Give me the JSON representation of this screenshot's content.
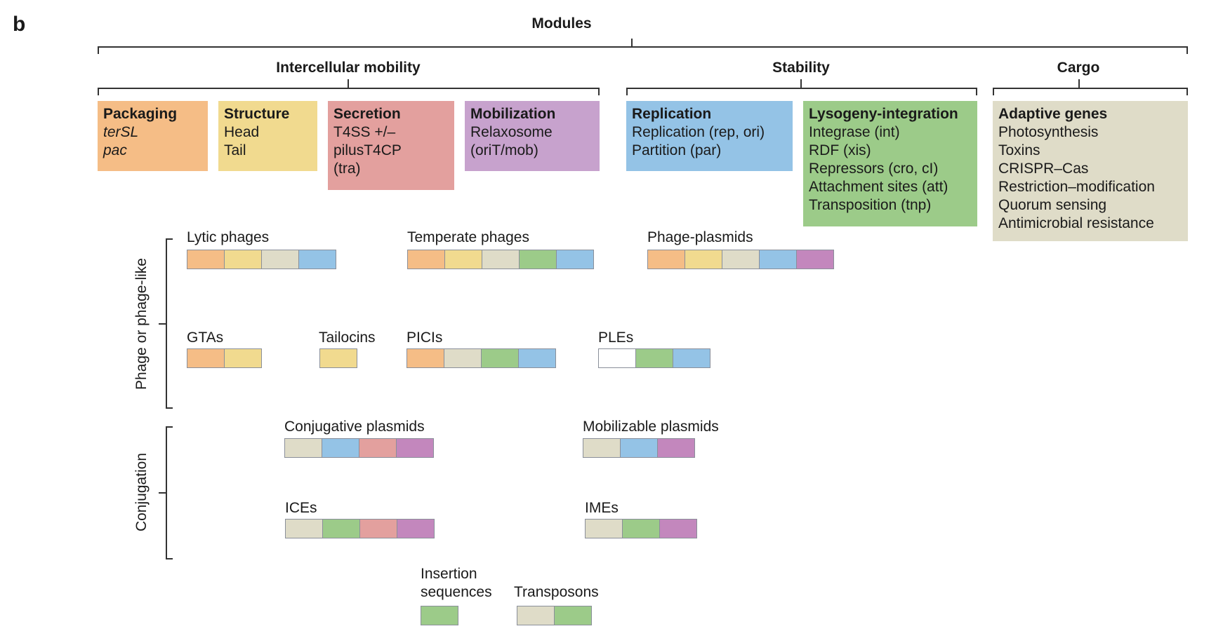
{
  "panel_label": "b",
  "colors": {
    "packaging": "#f5bd86",
    "structure": "#f1da8f",
    "secretion": "#e3a09e",
    "mobilization": "#c7a2cd",
    "replication": "#94c3e6",
    "lysogeny": "#9ccb89",
    "cargo": "#dfdcc8",
    "seg_mobilization": "#c387bd",
    "seg_empty": "#ffffff"
  },
  "headers": {
    "modules": "Modules",
    "intercellular": "Intercellular mobility",
    "stability": "Stability",
    "cargo": "Cargo"
  },
  "module_boxes": [
    {
      "title": "Packaging",
      "lines": [
        "terSL",
        "pac"
      ],
      "italic": [
        true,
        true
      ],
      "color": "packaging"
    },
    {
      "title": "Structure",
      "lines": [
        "Head",
        "Tail"
      ],
      "italic": [
        false,
        false
      ],
      "color": "structure"
    },
    {
      "title": "Secretion",
      "lines": [
        "T4SS +/–",
        "pilusT4CP",
        "(tra)"
      ],
      "italic": [
        false,
        false,
        false
      ],
      "color": "secretion"
    },
    {
      "title": "Mobilization",
      "lines": [
        "Relaxosome",
        "(oriT/mob)"
      ],
      "italic": [
        false,
        false
      ],
      "color": "mobilization"
    },
    {
      "title": "Replication",
      "lines": [
        "Replication (rep, ori)",
        "Partition (par)"
      ],
      "italic": [
        false,
        false
      ],
      "color": "replication"
    },
    {
      "title": "Lysogeny-integration",
      "lines": [
        "Integrase (int)",
        "RDF (xis)",
        "Repressors (cro, cI)",
        "Attachment sites (att)",
        "Transposition (tnp)"
      ],
      "italic": [
        false,
        false,
        false,
        false,
        false
      ],
      "color": "lysogeny"
    },
    {
      "title": "Adaptive genes",
      "lines": [
        "Photosynthesis",
        "Toxins",
        "CRISPR–Cas",
        "Restriction–modification",
        "Quorum sensing",
        "Antimicrobial resistance"
      ],
      "italic": [
        false,
        false,
        false,
        false,
        false,
        false
      ],
      "color": "cargo"
    }
  ],
  "group_labels": {
    "phage": "Phage or phage-like",
    "conjugation": "Conjugation"
  },
  "elements": [
    {
      "name": "Lytic phages",
      "segments": [
        "packaging",
        "structure",
        "cargo",
        "replication"
      ]
    },
    {
      "name": "Temperate phages",
      "segments": [
        "packaging",
        "structure",
        "cargo",
        "lysogeny",
        "replication"
      ]
    },
    {
      "name": "Phage-plasmids",
      "segments": [
        "packaging",
        "structure",
        "cargo",
        "replication",
        "seg_mobilization"
      ]
    },
    {
      "name": "GTAs",
      "segments": [
        "packaging",
        "structure"
      ]
    },
    {
      "name": "Tailocins",
      "segments": [
        "structure"
      ]
    },
    {
      "name": "PICIs",
      "segments": [
        "packaging",
        "cargo",
        "lysogeny",
        "replication"
      ]
    },
    {
      "name": "PLEs",
      "segments": [
        "seg_empty",
        "lysogeny",
        "replication"
      ]
    },
    {
      "name": "Conjugative plasmids",
      "segments": [
        "cargo",
        "replication",
        "secretion",
        "seg_mobilization"
      ]
    },
    {
      "name": "Mobilizable plasmids",
      "segments": [
        "cargo",
        "replication",
        "seg_mobilization"
      ]
    },
    {
      "name": "ICEs",
      "segments": [
        "cargo",
        "lysogeny",
        "secretion",
        "seg_mobilization"
      ]
    },
    {
      "name": "IMEs",
      "segments": [
        "cargo",
        "lysogeny",
        "seg_mobilization"
      ]
    },
    {
      "name": "Insertion sequences",
      "label_lines": [
        "Insertion",
        "sequences"
      ],
      "segments": [
        "lysogeny"
      ]
    },
    {
      "name": "Transposons",
      "segments": [
        "cargo",
        "lysogeny"
      ]
    }
  ]
}
